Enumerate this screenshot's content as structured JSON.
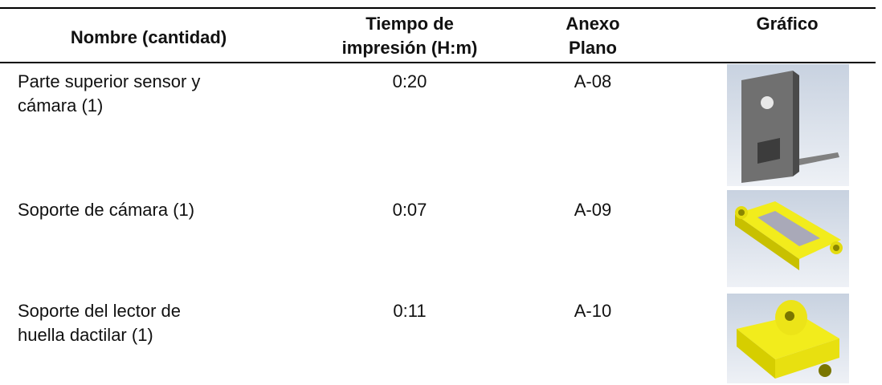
{
  "table": {
    "header": [
      [
        "Nombre (cantidad)"
      ],
      [
        "Tiempo de",
        "impresión (H:m)"
      ],
      [
        "Anexo",
        "Plano"
      ],
      [
        "Gráfico"
      ]
    ],
    "rows": [
      [
        [
          "Parte superior sensor y",
          "cámara (1)"
        ],
        "0:20",
        "A-08"
      ],
      [
        [
          "Soporte de cámara (1)"
        ],
        "0:07",
        "A-09"
      ],
      [
        [
          "Soporte del lector de",
          "huella dactilar (1)"
        ],
        "0:11",
        "A-10"
      ]
    ]
  }
}
